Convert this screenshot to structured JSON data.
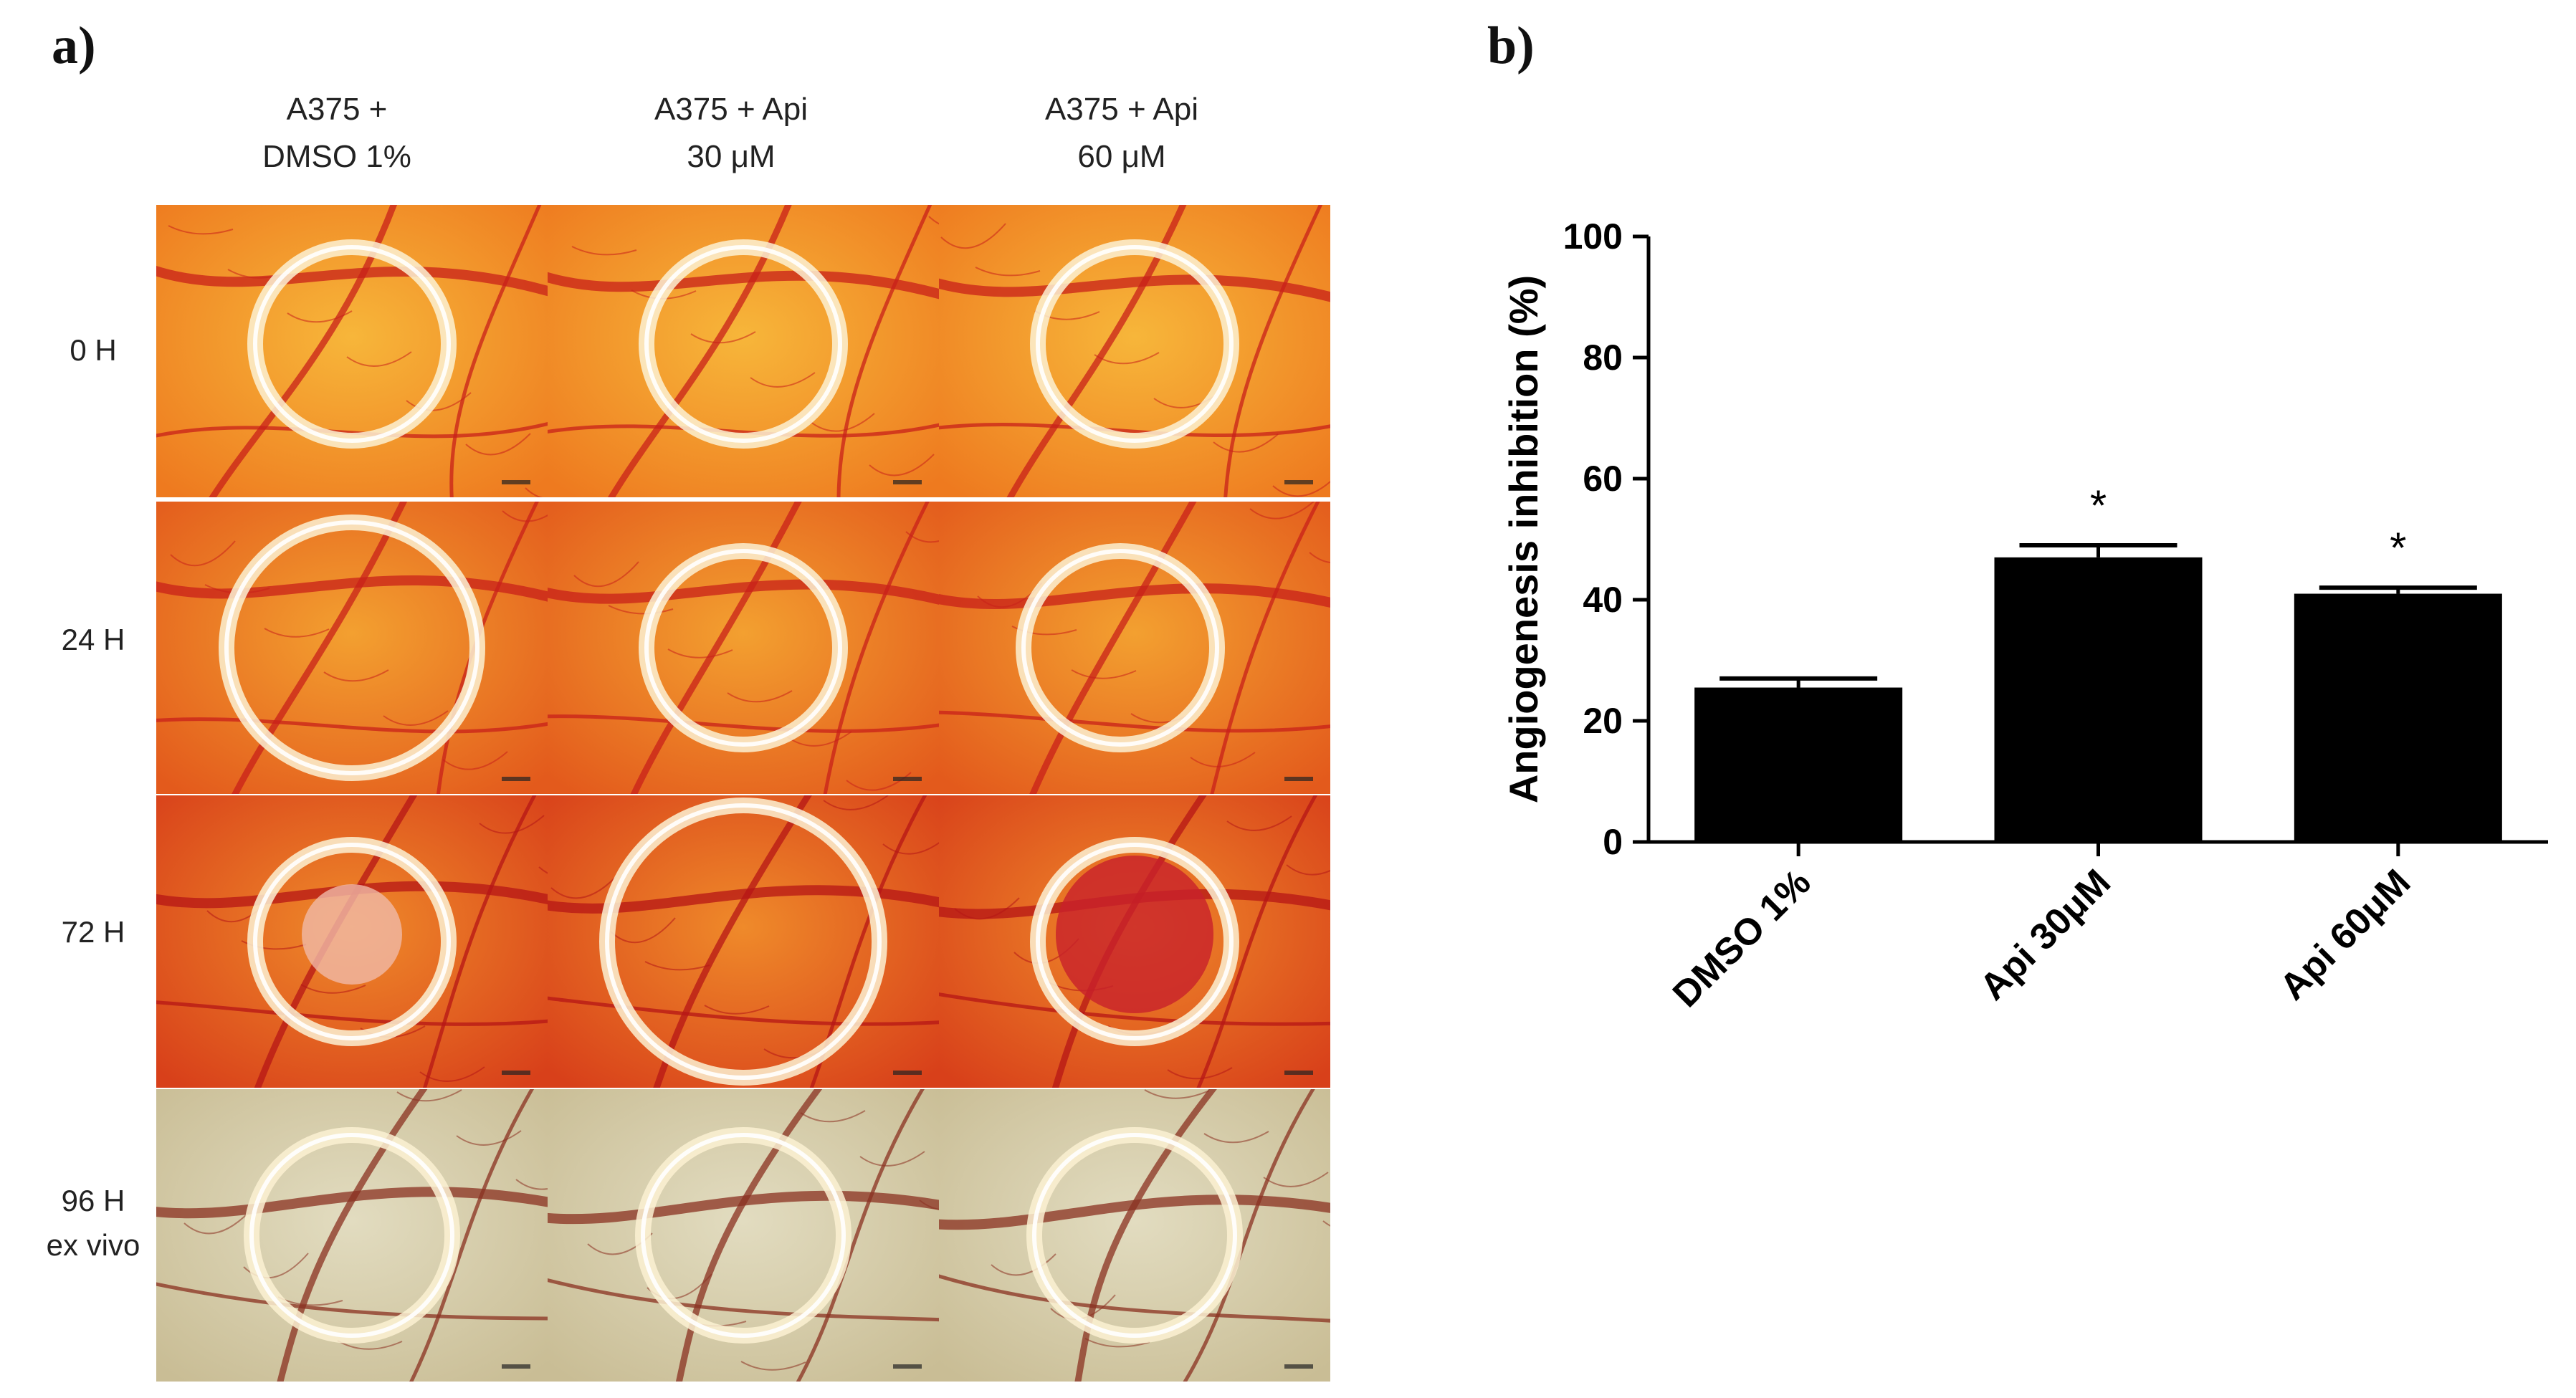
{
  "panel_a": {
    "letter": "a)",
    "columns": [
      {
        "line1": "A375 +",
        "line2": "DMSO 1%"
      },
      {
        "line1": "A375 + Api",
        "line2": "30 μM"
      },
      {
        "line1": "A375 + Api",
        "line2": "60 μM"
      }
    ],
    "rows": [
      {
        "line1": "0 H",
        "line2": ""
      },
      {
        "line1": "24 H",
        "line2": ""
      },
      {
        "line1": "72 H",
        "line2": ""
      },
      {
        "line1": "96 H",
        "line2": "ex vivo"
      }
    ]
  },
  "panel_b": {
    "letter": "b)"
  },
  "colors": {
    "bar": "#000000",
    "live_cam": "#f2a12e",
    "ex_vivo": "#d9cfa8"
  },
  "chart_data": {
    "type": "bar",
    "categories": [
      "DMSO 1%",
      "Api 30μM",
      "Api 60μM"
    ],
    "values": [
      25.5,
      47,
      41
    ],
    "errors": [
      1.5,
      2,
      1
    ],
    "significance": [
      "",
      "*",
      "*"
    ],
    "ylabel": "Angiogenesis inhibition (%)",
    "xlabel": "",
    "ylim": [
      0,
      100
    ],
    "yticks": [
      0,
      20,
      40,
      60,
      80,
      100
    ],
    "grid": false
  }
}
